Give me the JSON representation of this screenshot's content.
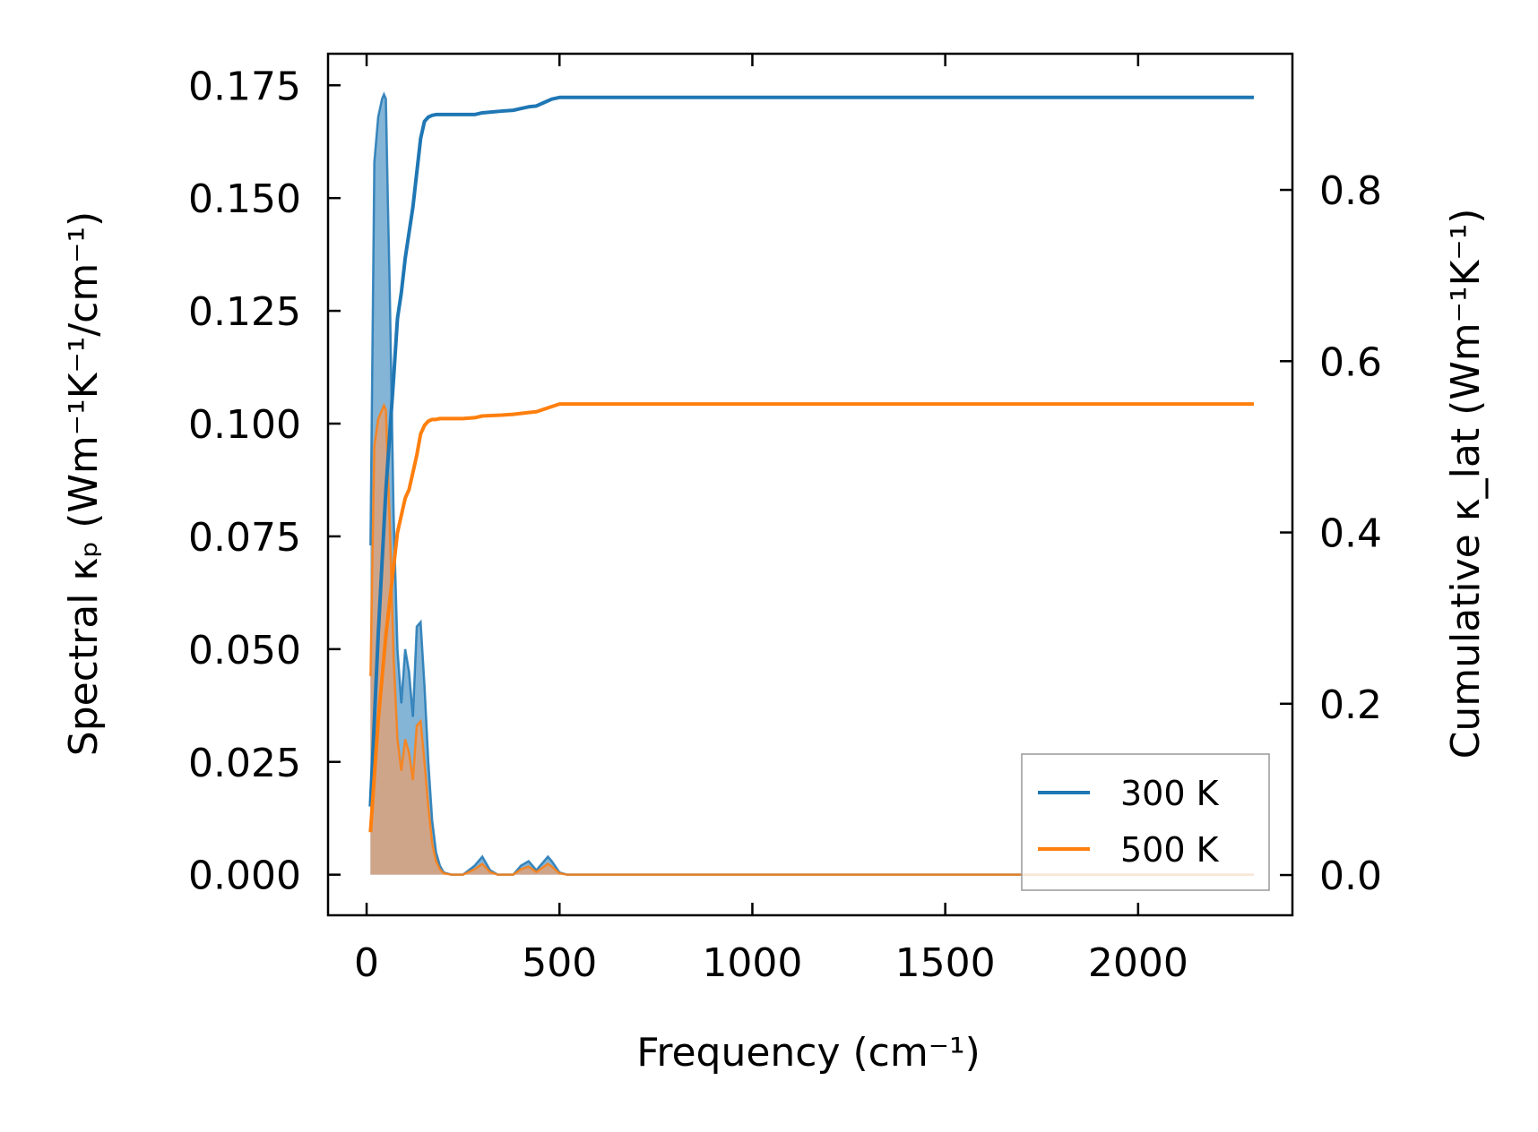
{
  "chart_data": {
    "type": "line",
    "title": "",
    "xlabel": "Frequency (cm⁻¹)",
    "ylabel_left": "Spectral κₚ (Wm⁻¹K⁻¹/cm⁻¹)",
    "ylabel_right": "Cumulative κ_lat (Wm⁻¹K⁻¹)",
    "xlim": [
      -100,
      2400
    ],
    "ylim_left": [
      -0.009,
      0.182
    ],
    "ylim_right": [
      -0.047,
      0.959
    ],
    "x_ticks": [
      0,
      500,
      1000,
      1500,
      2000
    ],
    "x_tick_labels": [
      "0",
      "500",
      "1000",
      "1500",
      "2000"
    ],
    "y_left_ticks": [
      0.0,
      0.025,
      0.05,
      0.075,
      0.1,
      0.125,
      0.15,
      0.175
    ],
    "y_left_tick_labels": [
      "0.000",
      "0.025",
      "0.050",
      "0.075",
      "0.100",
      "0.125",
      "0.150",
      "0.175"
    ],
    "y_right_ticks": [
      0.0,
      0.2,
      0.4,
      0.6,
      0.8
    ],
    "y_right_tick_labels": [
      "0.0",
      "0.2",
      "0.4",
      "0.6",
      "0.8"
    ],
    "legend_position": "lower-right",
    "grid": false,
    "colors": {
      "s300": "#1f77b4",
      "s500": "#ff7f0e",
      "fill300": "#1f77b4",
      "fill500": "#e8a070"
    },
    "spectral_series": [
      {
        "name": "300 K",
        "x": [
          10,
          20,
          30,
          40,
          45,
          50,
          55,
          60,
          70,
          80,
          90,
          100,
          110,
          120,
          130,
          140,
          150,
          160,
          170,
          180,
          190,
          200,
          220,
          250,
          280,
          300,
          320,
          340,
          380,
          400,
          420,
          430,
          440,
          460,
          470,
          480,
          500,
          520,
          600,
          800,
          1000,
          1500,
          2000,
          2300
        ],
        "y": [
          0.073,
          0.158,
          0.168,
          0.172,
          0.173,
          0.172,
          0.15,
          0.13,
          0.08,
          0.05,
          0.038,
          0.05,
          0.045,
          0.035,
          0.055,
          0.056,
          0.042,
          0.025,
          0.012,
          0.005,
          0.002,
          0.0005,
          0.0,
          0.0,
          0.002,
          0.004,
          0.001,
          0.0,
          0.0,
          0.002,
          0.003,
          0.002,
          0.001,
          0.003,
          0.004,
          0.003,
          0.0005,
          0.0,
          0.0,
          0.0,
          0.0,
          0.0,
          0.0,
          0.0
        ]
      },
      {
        "name": "500 K",
        "x": [
          10,
          20,
          30,
          40,
          45,
          50,
          55,
          60,
          70,
          80,
          90,
          100,
          110,
          120,
          130,
          140,
          150,
          160,
          170,
          180,
          190,
          200,
          220,
          250,
          280,
          300,
          320,
          340,
          380,
          400,
          420,
          430,
          440,
          460,
          470,
          480,
          500,
          520,
          600,
          800,
          1000,
          1500,
          2000,
          2300
        ],
        "y": [
          0.044,
          0.095,
          0.101,
          0.103,
          0.104,
          0.103,
          0.09,
          0.078,
          0.048,
          0.03,
          0.023,
          0.03,
          0.027,
          0.021,
          0.033,
          0.034,
          0.025,
          0.015,
          0.007,
          0.003,
          0.0012,
          0.0003,
          0.0,
          0.0,
          0.0012,
          0.0024,
          0.0006,
          0.0,
          0.0,
          0.0012,
          0.0018,
          0.0012,
          0.0006,
          0.0018,
          0.0024,
          0.0018,
          0.0003,
          0.0,
          0.0,
          0.0,
          0.0,
          0.0,
          0.0,
          0.0
        ]
      }
    ],
    "cumulative_series": [
      {
        "name": "300 K",
        "x": [
          10,
          30,
          50,
          70,
          80,
          90,
          100,
          110,
          120,
          130,
          140,
          150,
          160,
          170,
          180,
          190,
          200,
          220,
          250,
          280,
          300,
          350,
          380,
          400,
          420,
          440,
          460,
          480,
          500,
          600,
          1000,
          2000,
          2300
        ],
        "y": [
          0.08,
          0.28,
          0.45,
          0.58,
          0.65,
          0.68,
          0.72,
          0.75,
          0.78,
          0.82,
          0.86,
          0.88,
          0.885,
          0.887,
          0.888,
          0.888,
          0.888,
          0.888,
          0.888,
          0.888,
          0.89,
          0.892,
          0.893,
          0.895,
          0.897,
          0.898,
          0.902,
          0.906,
          0.908,
          0.908,
          0.908,
          0.908,
          0.908
        ]
      },
      {
        "name": "500 K",
        "x": [
          10,
          30,
          50,
          70,
          80,
          90,
          100,
          110,
          120,
          130,
          140,
          150,
          160,
          170,
          180,
          190,
          200,
          220,
          250,
          280,
          300,
          350,
          380,
          400,
          420,
          440,
          460,
          480,
          500,
          600,
          1000,
          2000,
          2300
        ],
        "y": [
          0.05,
          0.18,
          0.28,
          0.36,
          0.4,
          0.42,
          0.44,
          0.45,
          0.47,
          0.49,
          0.515,
          0.525,
          0.53,
          0.532,
          0.532,
          0.533,
          0.533,
          0.533,
          0.533,
          0.534,
          0.536,
          0.537,
          0.538,
          0.539,
          0.54,
          0.541,
          0.544,
          0.547,
          0.55,
          0.55,
          0.55,
          0.55,
          0.55
        ]
      }
    ],
    "legend": [
      {
        "label": "300 K",
        "color": "#1f77b4"
      },
      {
        "label": "500 K",
        "color": "#ff7f0e"
      }
    ]
  }
}
